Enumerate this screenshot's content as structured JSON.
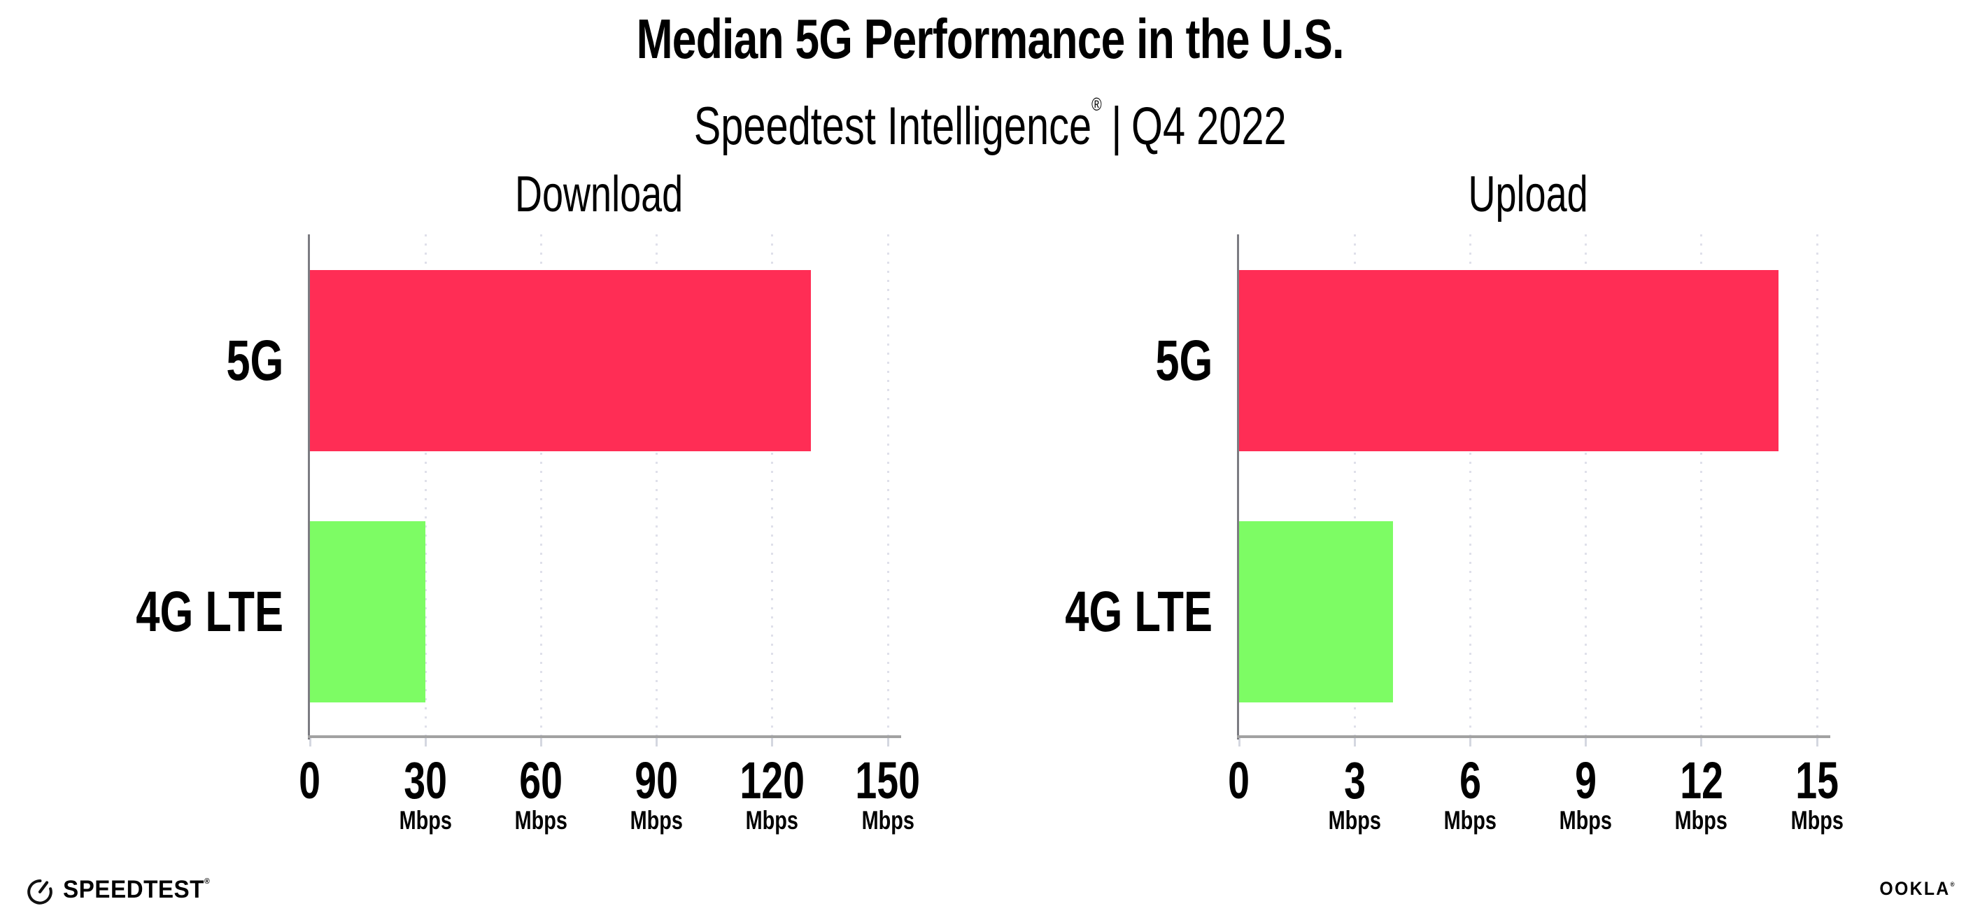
{
  "title": "Median 5G Performance in the U.S.",
  "subtitle": {
    "brand": "Speedtest Intelligence",
    "registered": "®",
    "separator": "|",
    "period": "Q4 2022"
  },
  "chart_data": [
    {
      "type": "bar",
      "orientation": "horizontal",
      "title": "Download",
      "categories": [
        "5G",
        "4G LTE"
      ],
      "values": [
        130,
        30
      ],
      "unit": "Mbps",
      "xlim": [
        0,
        150
      ],
      "xticks": [
        0,
        30,
        60,
        90,
        120,
        150
      ],
      "bar_colors": [
        "#ff2d55",
        "#7dfc64"
      ],
      "grid": "vertical-dotted",
      "legend": "none"
    },
    {
      "type": "bar",
      "orientation": "horizontal",
      "title": "Upload",
      "categories": [
        "5G",
        "4G LTE"
      ],
      "values": [
        14,
        4
      ],
      "unit": "Mbps",
      "xlim": [
        0,
        15
      ],
      "xticks": [
        0,
        3,
        6,
        9,
        12,
        15
      ],
      "bar_colors": [
        "#ff2d55",
        "#7dfc64"
      ],
      "grid": "vertical-dotted",
      "legend": "none"
    }
  ],
  "colors": {
    "bar_5g": "#ff2d55",
    "bar_4g_lte": "#7dfc64",
    "x_axis": "#a2a2a2",
    "y_axis": "#7c7c82",
    "gridline": "#dfe0ea",
    "text": "#000000"
  },
  "footer": {
    "speedtest_logo_text": "SPEEDTEST",
    "speedtest_registered": "®",
    "ookla_logo_text": "OOKLA",
    "ookla_registered": "®"
  }
}
